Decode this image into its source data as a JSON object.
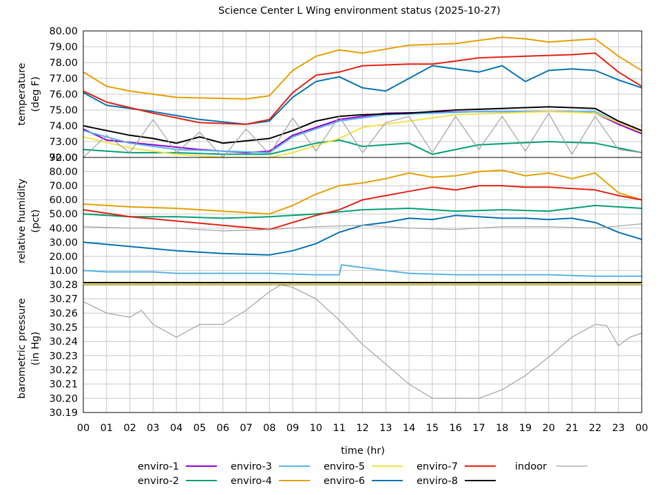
{
  "chart_data": {
    "title": "Science Center L Wing environment status (2025-10-27)",
    "xlabel": "time (hr)",
    "x_ticks": [
      "00",
      "01",
      "02",
      "03",
      "04",
      "05",
      "06",
      "07",
      "08",
      "09",
      "10",
      "11",
      "12",
      "13",
      "14",
      "15",
      "16",
      "17",
      "18",
      "19",
      "20",
      "21",
      "22",
      "23",
      "00"
    ],
    "legend": [
      {
        "name": "enviro-1",
        "color": "#9400d3"
      },
      {
        "name": "enviro-2",
        "color": "#009e73"
      },
      {
        "name": "enviro-3",
        "color": "#56b4e9"
      },
      {
        "name": "enviro-4",
        "color": "#e69f00"
      },
      {
        "name": "enviro-5",
        "color": "#f0e442"
      },
      {
        "name": "enviro-6",
        "color": "#0072b2"
      },
      {
        "name": "enviro-7",
        "color": "#e51e10"
      },
      {
        "name": "enviro-8",
        "color": "#000000"
      },
      {
        "name": "indoor",
        "color": "#a0a0a0"
      }
    ],
    "panels": [
      {
        "type": "line",
        "ylabel_lines": [
          "temperature",
          "(deg F)"
        ],
        "ylim": [
          72,
          80
        ],
        "yticks": [
          "72.00",
          "73.00",
          "74.00",
          "75.00",
          "76.00",
          "77.00",
          "78.00",
          "79.00",
          "80.00"
        ],
        "series": [
          {
            "name": "enviro-1",
            "x": [
              0,
              1,
              3,
              5,
              7,
              8,
              9,
              11,
              13,
              17,
              21,
              22,
              23,
              24
            ],
            "y": [
              73.8,
              73.1,
              72.8,
              72.5,
              72.3,
              72.4,
              73.4,
              74.4,
              74.8,
              74.9,
              74.9,
              74.8,
              74.1,
              73.5
            ]
          },
          {
            "name": "enviro-2",
            "x": [
              0,
              2,
              4,
              6,
              8,
              10,
              11,
              12,
              14,
              15,
              17,
              20,
              22,
              24
            ],
            "y": [
              72.5,
              72.3,
              72.3,
              72.2,
              72.2,
              72.9,
              73.1,
              72.7,
              72.9,
              72.2,
              72.8,
              73.0,
              72.9,
              72.3
            ]
          },
          {
            "name": "enviro-3",
            "x": [
              0,
              2,
              4,
              6,
              8,
              9,
              11,
              13,
              17,
              22,
              23,
              24
            ],
            "y": [
              73.7,
              72.9,
              72.5,
              72.4,
              72.3,
              73.3,
              74.3,
              74.7,
              74.9,
              74.9,
              74.2,
              73.6
            ]
          },
          {
            "name": "enviro-4",
            "x": [
              0,
              1,
              2,
              3,
              4,
              7,
              8,
              9,
              10,
              11,
              12,
              14,
              16,
              17,
              18,
              19,
              20,
              21,
              22,
              23,
              24
            ],
            "y": [
              77.4,
              76.5,
              76.2,
              76.0,
              75.8,
              75.7,
              75.9,
              77.5,
              78.4,
              78.8,
              78.6,
              79.1,
              79.2,
              79.4,
              79.6,
              79.5,
              79.3,
              79.4,
              79.5,
              78.4,
              77.5
            ]
          },
          {
            "name": "enviro-5",
            "x": [
              0,
              2,
              4,
              6,
              8,
              9,
              11,
              12,
              16,
              20,
              22,
              23,
              24
            ],
            "y": [
              73.3,
              72.6,
              72.2,
              72.0,
              72.0,
              72.3,
              73.2,
              73.9,
              74.7,
              74.9,
              74.8,
              74.2,
              73.6
            ]
          },
          {
            "name": "enviro-6",
            "x": [
              0,
              1,
              3,
              5,
              7,
              8,
              9,
              10,
              11,
              12,
              13,
              14,
              15,
              16,
              17,
              18,
              19,
              20,
              21,
              22,
              23,
              24
            ],
            "y": [
              76.1,
              75.3,
              74.9,
              74.4,
              74.1,
              74.3,
              75.8,
              76.8,
              77.1,
              76.4,
              76.2,
              77.0,
              77.8,
              77.6,
              77.4,
              77.8,
              76.8,
              77.5,
              77.6,
              77.5,
              76.9,
              76.4
            ]
          },
          {
            "name": "enviro-7",
            "x": [
              0,
              1,
              3,
              5,
              7,
              8,
              9,
              10,
              11,
              12,
              14,
              15,
              17,
              19,
              21,
              22,
              23,
              24
            ],
            "y": [
              76.2,
              75.5,
              74.8,
              74.2,
              74.1,
              74.4,
              76.1,
              77.2,
              77.4,
              77.8,
              77.9,
              77.9,
              78.3,
              78.4,
              78.5,
              78.6,
              77.4,
              76.5
            ]
          },
          {
            "name": "enviro-8",
            "x": [
              0,
              2,
              3,
              4,
              5,
              6,
              8,
              9,
              10,
              11,
              12,
              14,
              16,
              18,
              20,
              22,
              23,
              24
            ],
            "y": [
              74.0,
              73.4,
              73.2,
              72.9,
              73.3,
              72.9,
              73.2,
              73.7,
              74.3,
              74.6,
              74.7,
              74.8,
              75.0,
              75.1,
              75.2,
              75.1,
              74.3,
              73.7
            ]
          },
          {
            "name": "indoor",
            "x": [
              0,
              1,
              2,
              3,
              4,
              5,
              6,
              7,
              8,
              9,
              10,
              11,
              12,
              13,
              14,
              15,
              16,
              17,
              18,
              19,
              20,
              21,
              22,
              23,
              24
            ],
            "y": [
              72.0,
              73.4,
              72.3,
              74.4,
              72.3,
              73.6,
              72.0,
              73.8,
              72.2,
              74.5,
              72.4,
              74.6,
              72.3,
              74.2,
              74.6,
              72.3,
              74.6,
              72.5,
              74.6,
              72.4,
              74.8,
              72.2,
              74.6,
              72.5,
              72.3
            ]
          }
        ]
      },
      {
        "type": "line",
        "ylabel_lines": [
          "relative humidity",
          "(pct)"
        ],
        "ylim": [
          0,
          90
        ],
        "yticks": [
          "10.00",
          "20.00",
          "30.00",
          "40.00",
          "50.00",
          "60.00",
          "70.00",
          "80.00"
        ],
        "top_tick_label": "90.00",
        "series": [
          {
            "name": "enviro-2",
            "x": [
              0,
              2,
              4,
              6,
              8,
              10,
              12,
              14,
              16,
              18,
              20,
              22,
              24
            ],
            "y": [
              50,
              48,
              48,
              47,
              48,
              50,
              53,
              54,
              52,
              53,
              52,
              56,
              54
            ]
          },
          {
            "name": "enviro-3",
            "x": [
              0,
              1,
              2,
              3,
              4,
              6,
              8,
              10,
              11,
              11.1,
              12,
              13,
              14,
              16,
              18,
              20,
              22,
              24
            ],
            "y": [
              10,
              9,
              9,
              9,
              8,
              8,
              8,
              7,
              7,
              14,
              12,
              10,
              8,
              7,
              7,
              7,
              6,
              6
            ]
          },
          {
            "name": "enviro-4",
            "x": [
              0,
              2,
              4,
              6,
              8,
              9,
              10,
              11,
              12,
              13,
              14,
              15,
              16,
              17,
              18,
              19,
              20,
              21,
              22,
              23,
              24
            ],
            "y": [
              57,
              55,
              54,
              52,
              50,
              56,
              64,
              70,
              72,
              75,
              79,
              76,
              77,
              80,
              81,
              77,
              79,
              75,
              79,
              65,
              60
            ]
          },
          {
            "name": "enviro-6",
            "x": [
              0,
              2,
              4,
              6,
              8,
              9,
              10,
              11,
              12,
              13,
              14,
              15,
              16,
              17,
              18,
              19,
              20,
              21,
              22,
              23,
              24
            ],
            "y": [
              30,
              27,
              24,
              22,
              21,
              24,
              29,
              37,
              42,
              44,
              47,
              46,
              49,
              48,
              47,
              47,
              46,
              47,
              44,
              37,
              32
            ]
          },
          {
            "name": "enviro-7",
            "x": [
              0,
              2,
              4,
              6,
              8,
              9,
              10,
              11,
              12,
              13,
              14,
              15,
              16,
              17,
              18,
              19,
              20,
              21,
              22,
              23,
              24
            ],
            "y": [
              53,
              48,
              45,
              42,
              39,
              44,
              49,
              53,
              60,
              63,
              66,
              69,
              67,
              70,
              70,
              69,
              69,
              68,
              67,
              63,
              60
            ]
          },
          {
            "name": "indoor",
            "x": [
              0,
              2,
              4,
              6,
              8,
              10,
              12,
              14,
              16,
              18,
              20,
              22,
              24
            ],
            "y": [
              41,
              40,
              40,
              38,
              39,
              41,
              42,
              40,
              39,
              41,
              41,
              40,
              43
            ]
          }
        ]
      },
      {
        "type": "line",
        "ylabel_lines": [
          "barometric pressure",
          "(in Hg)"
        ],
        "ylim": [
          30.19,
          30.28
        ],
        "yticks": [
          "30.19",
          "30.20",
          "30.21",
          "30.22",
          "30.23",
          "30.24",
          "30.25",
          "30.26",
          "30.27"
        ],
        "top_tick_label": "30.28",
        "series": [
          {
            "name": "indoor",
            "x": [
              0,
              1,
              2,
              2.5,
              3,
              4,
              5,
              6,
              7,
              8,
              8.5,
              9,
              10,
              11,
              12,
              13,
              14,
              15,
              16,
              17,
              18,
              19,
              20,
              21,
              22,
              22.5,
              23,
              23.5,
              24
            ],
            "y": [
              30.268,
              30.26,
              30.257,
              30.262,
              30.252,
              30.243,
              30.252,
              30.252,
              30.262,
              30.275,
              30.28,
              30.278,
              30.27,
              30.255,
              30.238,
              30.224,
              30.21,
              30.2,
              30.2,
              30.2,
              30.206,
              30.216,
              30.229,
              30.243,
              30.252,
              30.251,
              30.237,
              30.243,
              30.246
            ]
          }
        ]
      }
    ]
  }
}
